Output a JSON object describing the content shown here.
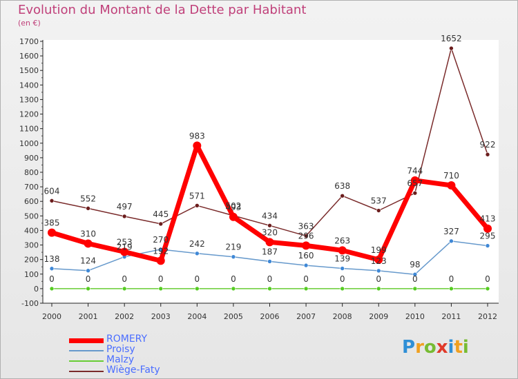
{
  "title": "Evolution du Montant de la Dette par Habitant",
  "subtitle": "(en €)",
  "chart_data": {
    "type": "line",
    "title": "Evolution du Montant de la Dette par Habitant",
    "ylabel": "(en €)",
    "xlabel": "",
    "categories": [
      "2000",
      "2001",
      "2002",
      "2003",
      "2004",
      "2005",
      "2006",
      "2007",
      "2008",
      "2009",
      "2010",
      "2011",
      "2012"
    ],
    "ylim": [
      -100,
      1700
    ],
    "yticks": [
      -100,
      0,
      100,
      200,
      300,
      400,
      500,
      600,
      700,
      800,
      900,
      1000,
      1100,
      1200,
      1300,
      1400,
      1500,
      1600,
      1700
    ],
    "grid": false,
    "legend_position": "bottom-left",
    "series": [
      {
        "name": "ROMERY",
        "color": "#ff0000",
        "values": [
          385,
          310,
          253,
          192,
          983,
          493,
          320,
          296,
          263,
          199,
          744,
          710,
          413
        ]
      },
      {
        "name": "Proisy",
        "color": "#6699cc",
        "values": [
          138,
          124,
          219,
          270,
          242,
          219,
          187,
          160,
          139,
          123,
          98,
          327,
          295
        ]
      },
      {
        "name": "Malzy",
        "color": "#66cc33",
        "values": [
          0,
          0,
          0,
          0,
          0,
          0,
          0,
          0,
          0,
          0,
          0,
          0,
          0
        ]
      },
      {
        "name": "Wiège-Faty",
        "color": "#7a2b2b",
        "values": [
          604,
          552,
          497,
          445,
          571,
          502,
          434,
          363,
          638,
          537,
          657,
          1652,
          922
        ]
      }
    ]
  },
  "logo": {
    "letters": [
      "P",
      "r",
      "o",
      "x",
      "i",
      "t",
      "i"
    ],
    "colors": [
      "#2f8fd6",
      "#f0a020",
      "#77bb33",
      "#e03a2a",
      "#2f8fd6",
      "#f0a020",
      "#77bb33"
    ]
  }
}
